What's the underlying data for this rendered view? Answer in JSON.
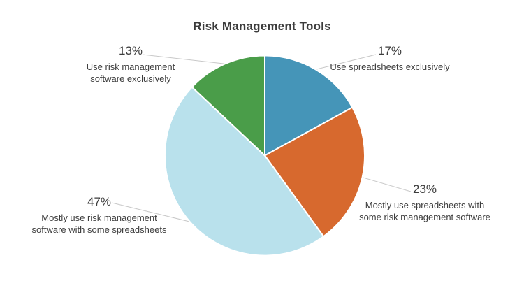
{
  "title": "Risk Management Tools",
  "colors": {
    "text": "#3d3d3d",
    "title_text": "#3b3b3b",
    "background": "#ffffff",
    "leader_line": "#c8c8c8",
    "slice_border": "#ffffff"
  },
  "chart_data": {
    "type": "pie",
    "title": "Risk Management Tools",
    "start_angle_deg": 0,
    "direction": "clockwise",
    "legend_position": "none",
    "labels": "outside with leader lines, percent above description",
    "slices": [
      {
        "name": "Use spreadsheets exclusively",
        "value": 17,
        "percent_label": "17%",
        "color": "#4595b8",
        "label_lines": [
          "Use spreadsheets exclusively"
        ]
      },
      {
        "name": "Mostly use spreadsheets with some risk management software",
        "value": 23,
        "percent_label": "23%",
        "color": "#d7692e",
        "label_lines": [
          "Mostly use spreadsheets with",
          "some risk management software"
        ]
      },
      {
        "name": "Mostly use risk management software with some spreadsheets",
        "value": 47,
        "percent_label": "47%",
        "color": "#b9e1ec",
        "label_lines": [
          "Mostly use risk management",
          "software with some spreadsheets"
        ]
      },
      {
        "name": "Use risk management software exclusively",
        "value": 13,
        "percent_label": "13%",
        "color": "#4a9d49",
        "label_lines": [
          "Use risk management",
          "software exclusively"
        ]
      }
    ]
  }
}
